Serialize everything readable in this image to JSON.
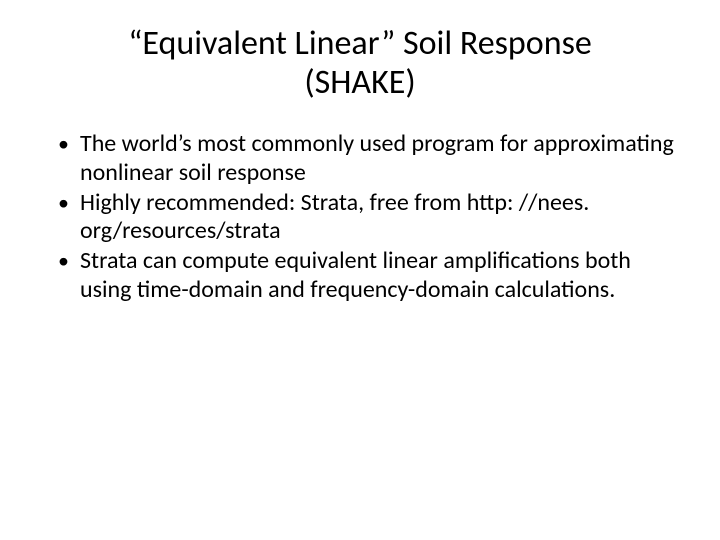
{
  "slide": {
    "title": "“Equivalent Linear” Soil Response (SHAKE)",
    "title_fontsize": 34,
    "title_color": "#000000",
    "bullets": [
      "The world’s most commonly used program for approximating nonlinear soil response",
      "Highly recommended: Strata, free from http: //nees. org/resources/strata",
      "Strata can compute equivalent linear amplifications both using time-domain and frequency-domain calculations."
    ],
    "bullet_fontsize": 24,
    "bullet_color": "#000000",
    "background_color": "#ffffff",
    "font_family": "Calibri"
  }
}
